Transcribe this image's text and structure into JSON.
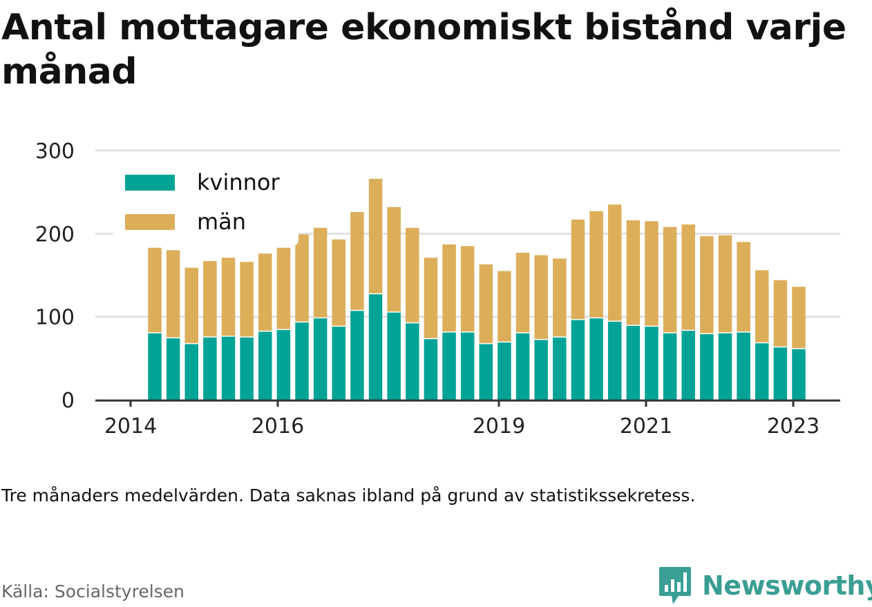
{
  "title": "Antal mottagare ekonomiskt bistånd varje månad",
  "note": "Tre månaders medelvärden. Data saknas ibland på grund av statistikssekretess.",
  "source": "Källa: Socialstyrelsen",
  "brand": {
    "name": "Newsworthy",
    "icon": "newsworthy-logo-icon",
    "color": "#3a9e94"
  },
  "colors": {
    "kvinnor": "#00a396",
    "man": "#dcae5a",
    "grid": "#dddddd",
    "axis": "#333333"
  },
  "chart_data": {
    "type": "bar",
    "stacked": true,
    "ylim": [
      0,
      300
    ],
    "yticks": [
      "0",
      "100",
      "200",
      "300"
    ],
    "xticks": [
      "2014",
      "2016",
      "2019",
      "2021",
      "2023"
    ],
    "legend": {
      "placement": "top-left",
      "entries": [
        "kvinnor",
        "män"
      ]
    },
    "grid": true,
    "series": [
      {
        "name": "kvinnor",
        "values": [
          80,
          74,
          67,
          75,
          76,
          75,
          82,
          84,
          93,
          98,
          88,
          107,
          127,
          105,
          92,
          73,
          81,
          81,
          67,
          69,
          80,
          72,
          75,
          96,
          98,
          94,
          89,
          88,
          80,
          83,
          79,
          80,
          81,
          68,
          63,
          61
        ]
      },
      {
        "name": "män",
        "values": [
          103,
          106,
          92,
          92,
          95,
          91,
          94,
          99,
          106,
          109,
          105,
          119,
          139,
          127,
          115,
          98,
          106,
          104,
          96,
          86,
          97,
          102,
          95,
          121,
          129,
          141,
          127,
          127,
          128,
          128,
          118,
          118,
          109,
          88,
          81,
          75
        ]
      }
    ]
  }
}
